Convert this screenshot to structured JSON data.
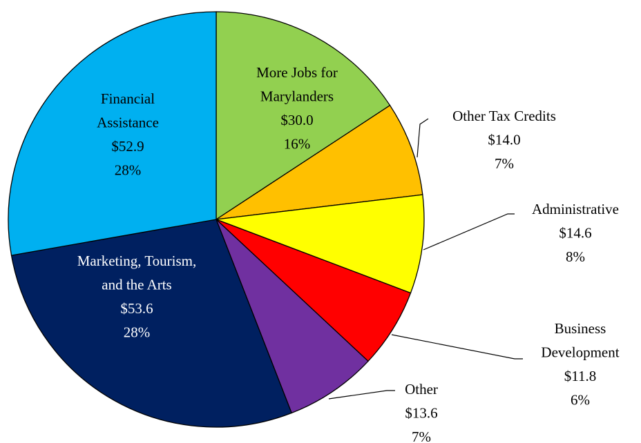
{
  "chart_data": {
    "type": "pie",
    "categories": [
      "More Jobs for\nMarylanders",
      "Other Tax Credits",
      "Administrative",
      "Business\nDevelopment",
      "Other",
      "Marketing, Tourism,\nand the Arts",
      "Financial\nAssistance"
    ],
    "values": [
      30.0,
      14.0,
      14.6,
      11.8,
      13.6,
      53.6,
      52.9
    ],
    "value_labels": [
      "$30.0",
      "$14.0",
      "$14.6",
      "$11.8",
      "$13.6",
      "$53.6",
      "$52.9"
    ],
    "percents": [
      16,
      7,
      8,
      6,
      7,
      28,
      28
    ],
    "percent_labels": [
      "16%",
      "7%",
      "8%",
      "6%",
      "7%",
      "28%",
      "28%"
    ],
    "colors": [
      "#92d050",
      "#ffc000",
      "#ffff00",
      "#ff0000",
      "#7030a0",
      "#002060",
      "#00b0f0"
    ]
  }
}
